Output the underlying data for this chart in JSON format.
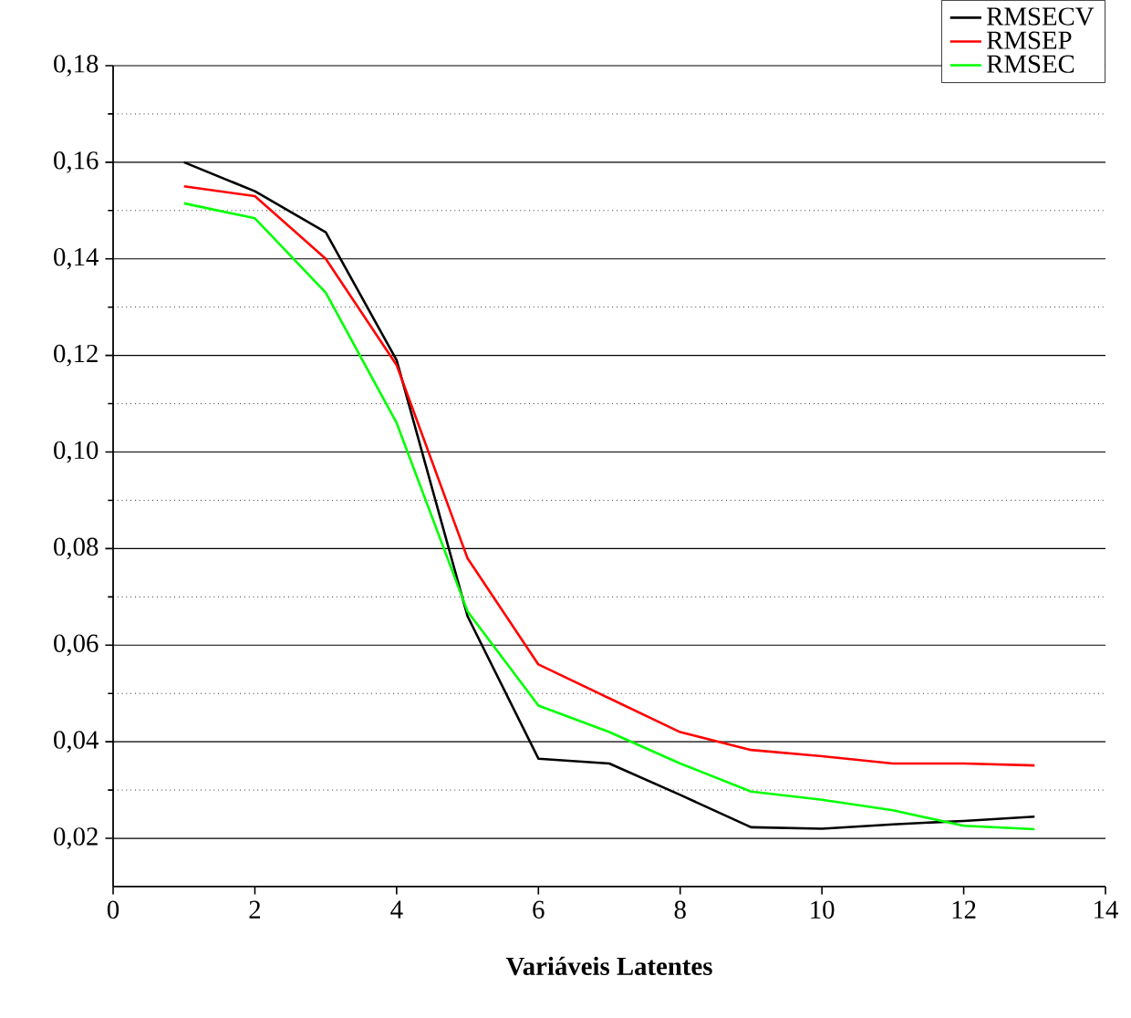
{
  "chart_data": {
    "type": "line",
    "xlabel": "Variáveis Latentes",
    "x": [
      1,
      2,
      3,
      4,
      5,
      6,
      7,
      8,
      9,
      10,
      11,
      12,
      13
    ],
    "series": [
      {
        "name": "RMSECV",
        "color": "#000000",
        "values": [
          0.16,
          0.154,
          0.1455,
          0.119,
          0.066,
          0.0365,
          0.0355,
          0.029,
          0.0223,
          0.022,
          0.0229,
          0.0236,
          0.0245
        ]
      },
      {
        "name": "RMSEP",
        "color": "#ff0000",
        "values": [
          0.155,
          0.153,
          0.14,
          0.118,
          0.078,
          0.056,
          0.049,
          0.042,
          0.0383,
          0.037,
          0.0355,
          0.0355,
          0.0351
        ]
      },
      {
        "name": "RMSEC",
        "color": "#00ff00",
        "values": [
          0.1515,
          0.1484,
          0.133,
          0.106,
          0.067,
          0.0475,
          0.042,
          0.0355,
          0.0297,
          0.028,
          0.0258,
          0.0226,
          0.0219
        ]
      }
    ],
    "xlim": [
      0,
      14
    ],
    "ylim": [
      0.01,
      0.18
    ],
    "xticks": [
      0,
      2,
      4,
      6,
      8,
      10,
      12,
      14
    ],
    "yticks": [
      {
        "value": 0.02,
        "label": "0,02"
      },
      {
        "value": 0.04,
        "label": "0,04"
      },
      {
        "value": 0.06,
        "label": "0,06"
      },
      {
        "value": 0.08,
        "label": "0,08"
      },
      {
        "value": 0.1,
        "label": "0,10"
      },
      {
        "value": 0.12,
        "label": "0,12"
      },
      {
        "value": 0.14,
        "label": "0,14"
      },
      {
        "value": 0.16,
        "label": "0,16"
      },
      {
        "value": 0.18,
        "label": "0,18"
      }
    ],
    "grid": "y",
    "legend": "top right",
    "marker": "none",
    "line_style": "solid"
  }
}
